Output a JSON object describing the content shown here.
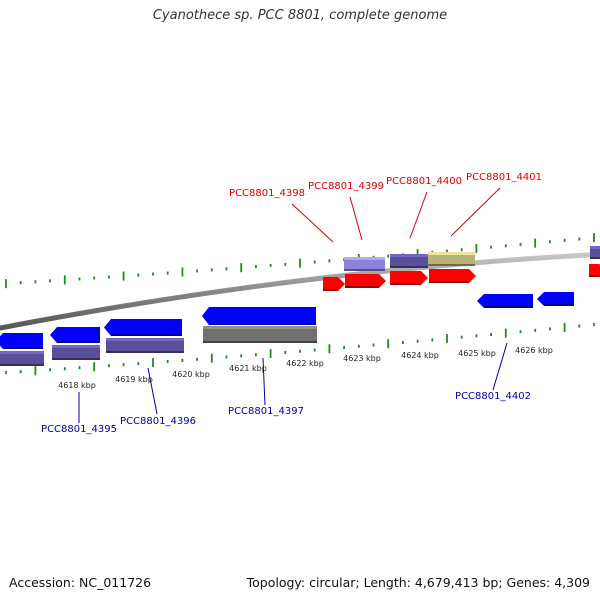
{
  "title": "Cyanothece sp. PCC 8801, complete genome",
  "footer": {
    "accession": "Accession: NC_011726",
    "summary": "Topology: circular; Length: 4,679,413 bp; Genes: 4,309"
  },
  "ticks": [
    {
      "label": "4618 kbp"
    },
    {
      "label": "4619 kbp"
    },
    {
      "label": "4620 kbp"
    },
    {
      "label": "4621 kbp"
    },
    {
      "label": "4622 kbp"
    },
    {
      "label": "4623 kbp"
    },
    {
      "label": "4624 kbp"
    },
    {
      "label": "4625 kbp"
    },
    {
      "label": "4626 kbp"
    }
  ],
  "genes_top": [
    {
      "label": "PCC8801_4398"
    },
    {
      "label": "PCC8801_4399"
    },
    {
      "label": "PCC8801_4400"
    },
    {
      "label": "PCC8801_4401"
    }
  ],
  "genes_bottom": [
    {
      "label": "PCC8801_4395"
    },
    {
      "label": "PCC8801_4396"
    },
    {
      "label": "PCC8801_4397"
    },
    {
      "label": "PCC8801_4402"
    }
  ],
  "colors": {
    "forward_gene": "#ff0000",
    "reverse_gene": "#0000ff",
    "label_forward": "#dd0000",
    "label_reverse": "#0000aa",
    "tick": "#228822",
    "backbone": "#888888",
    "cog_purple": "#5a4f9a",
    "cog_lavender": "#8c83d8",
    "cog_olive": "#b7b27a",
    "cog_gray": "#707070"
  }
}
